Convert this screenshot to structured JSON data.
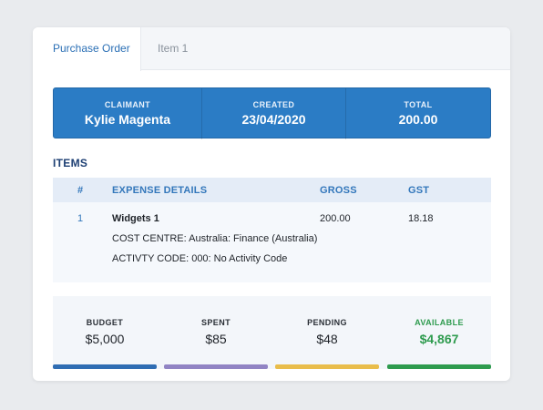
{
  "tabs": [
    {
      "label": "Purchase Order",
      "active": true
    },
    {
      "label": "Item 1",
      "active": false
    }
  ],
  "summary": {
    "claimant_label": "CLAIMANT",
    "claimant_value": "Kylie Magenta",
    "created_label": "CREATED",
    "created_value": "23/04/2020",
    "total_label": "TOTAL",
    "total_value": "200.00"
  },
  "items": {
    "heading": "ITEMS",
    "columns": {
      "num": "#",
      "details": "EXPENSE DETAILS",
      "gross": "GROSS",
      "gst": "GST"
    },
    "rows": [
      {
        "num": "1",
        "name": "Widgets 1",
        "cost_centre": "COST CENTRE: Australia: Finance (Australia)",
        "activity_code": "ACTIVTY CODE: 000: No Activity Code",
        "gross": "200.00",
        "gst": "18.18"
      }
    ]
  },
  "budget": {
    "budget_label": "BUDGET",
    "budget_value": "$5,000",
    "spent_label": "SPENT",
    "spent_value": "$85",
    "pending_label": "PENDING",
    "pending_value": "$48",
    "available_label": "AVAILABLE",
    "available_value": "$4,867"
  },
  "colors": {
    "accent": "#2b7cc5",
    "budget_bar": "#2f6db3",
    "spent_bar": "#9184c4",
    "pending_bar": "#e9bd4b",
    "available_bar": "#2e9b4e",
    "available_text": "#2e9b4e"
  }
}
